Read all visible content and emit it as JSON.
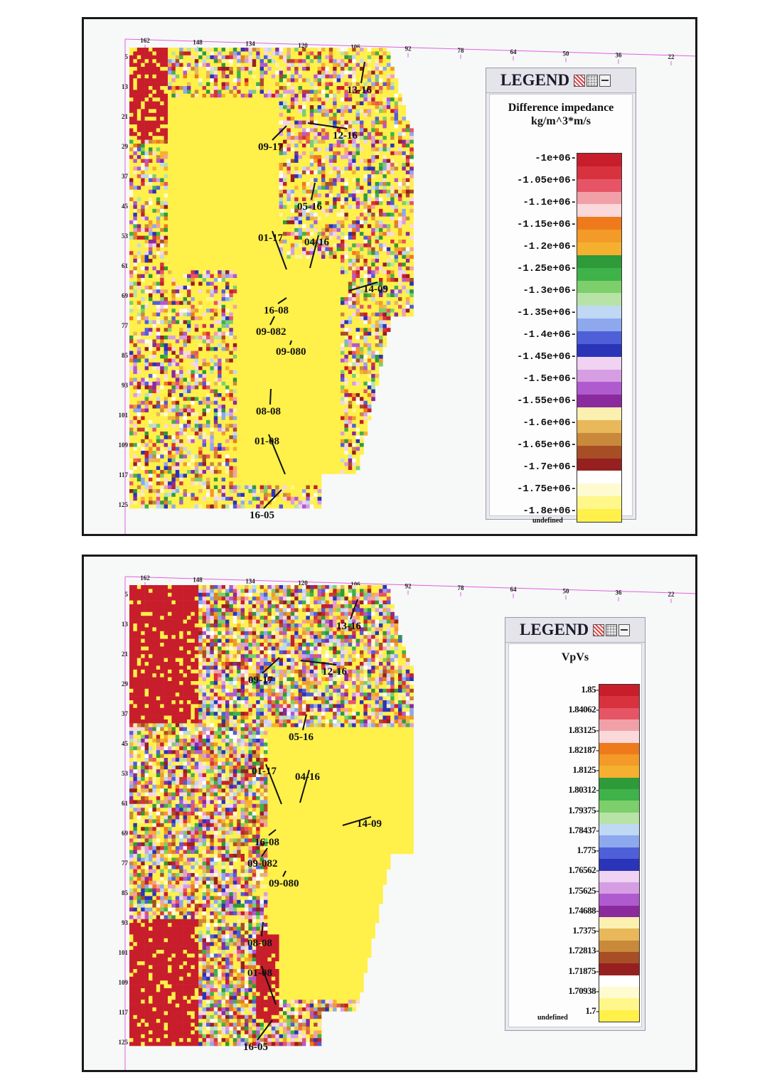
{
  "panels": [
    {
      "legend": {
        "title": "LEGEND",
        "variable": "Difference impedance",
        "unit": "kg/m^3*m/s",
        "ticks": [
          "-1e+06",
          "-1.05e+06",
          "-1.1e+06",
          "-1.15e+06",
          "-1.2e+06",
          "-1.25e+06",
          "-1.3e+06",
          "-1.35e+06",
          "-1.4e+06",
          "-1.45e+06",
          "-1.5e+06",
          "-1.55e+06",
          "-1.6e+06",
          "-1.65e+06",
          "-1.7e+06",
          "-1.75e+06",
          "-1.8e+06"
        ],
        "undefined_label": "undefined",
        "icons": [
          "properties-icon",
          "palette-icon",
          "minimize-icon"
        ]
      }
    },
    {
      "legend": {
        "title": "LEGEND",
        "variable": "VpVs",
        "unit": "",
        "ticks": [
          "1.85",
          "1.84062",
          "1.83125",
          "1.82187",
          "1.8125",
          "1.80312",
          "1.79375",
          "1.78437",
          "1.775",
          "1.76562",
          "1.75625",
          "1.74688",
          "1.7375",
          "1.72813",
          "1.71875",
          "1.70938",
          "1.7"
        ],
        "undefined_label": "undefined",
        "icons": [
          "properties-icon",
          "palette-icon",
          "minimize-icon"
        ]
      }
    }
  ],
  "axes": {
    "x_ticks": [
      "162",
      "148",
      "134",
      "120",
      "106",
      "92",
      "78",
      "64",
      "50",
      "36",
      "22"
    ],
    "y_ticks": [
      "5",
      "13",
      "21",
      "29",
      "37",
      "45",
      "53",
      "61",
      "69",
      "77",
      "85",
      "93",
      "101",
      "109",
      "117",
      "125"
    ]
  },
  "wells": [
    "13-16",
    "12-16",
    "09-17",
    "05-16",
    "01-17",
    "04-16",
    "14-09",
    "16-08",
    "09-082",
    "09-080",
    "08-08",
    "01-08",
    "16-05"
  ],
  "colormap": [
    "#c81e2c",
    "#d8323e",
    "#e65566",
    "#f2a0a8",
    "#fbd8da",
    "#ee7a1c",
    "#f39a28",
    "#f5b030",
    "#2e9a3a",
    "#3fb24a",
    "#7ccf6a",
    "#b7e3a6",
    "#bfd8f4",
    "#8ea8ee",
    "#4f5fd8",
    "#2a34b8",
    "#f0d2f2",
    "#d69ee2",
    "#b05ad0",
    "#8a2a9c",
    "#fbf0b0",
    "#e8b85a",
    "#c88a3a",
    "#a84e26",
    "#962020",
    "#ffffff",
    "#fffbd0",
    "#fff78a",
    "#fff04a"
  ]
}
